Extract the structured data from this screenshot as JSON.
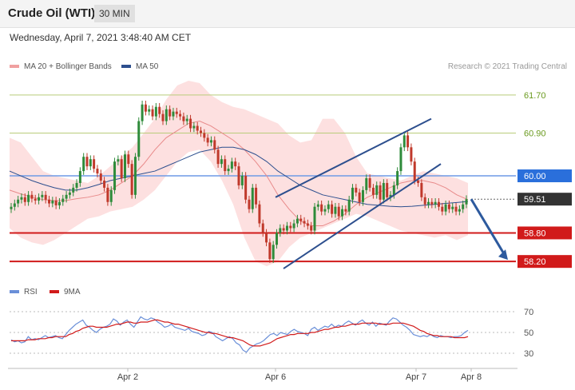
{
  "header": {
    "title": "Crude Oil (WTI)",
    "timeframe": "30 MIN"
  },
  "timestamp": "Wednesday, April 7, 2021 3:48:40 AM CET",
  "legend": {
    "ma20": "MA 20 + Bollinger Bands",
    "ma50": "MA 50",
    "copyright": "Research © 2021 Trading Central"
  },
  "rsi_legend": {
    "rsi": "RSI",
    "ma": "9MA"
  },
  "colors": {
    "ma20": "#e88a8a",
    "ma50": "#2d4f8e",
    "band": "#fcd6d6",
    "support": "#d11a1a",
    "resistance_green": "#b9cc7a",
    "pivot": "#2a6fdb",
    "up_candle": "#2e8b3a",
    "down_candle": "#c0392b",
    "arrow": "#2d5a9e",
    "rsi": "#6a8fd8",
    "rsi_ma": "#d11a1a"
  },
  "icons": {
    "forecast": "arrow-down-right-icon"
  },
  "chart_data": [
    {
      "type": "candlestick",
      "title": "Crude Oil (WTI)",
      "ylim": [
        57.85,
        62.05
      ],
      "x_ticks": [
        "Apr 2",
        "Apr 6",
        "Apr 7",
        "Apr 8"
      ],
      "levels": [
        {
          "value": 61.7,
          "label": "61.70",
          "kind": "resistance-green"
        },
        {
          "value": 60.9,
          "label": "60.90",
          "kind": "resistance-green"
        },
        {
          "value": 60.0,
          "label": "60.00",
          "kind": "pivot"
        },
        {
          "value": 59.51,
          "label": "59.51",
          "kind": "last-price"
        },
        {
          "value": 58.8,
          "label": "58.80",
          "kind": "support"
        },
        {
          "value": 58.2,
          "label": "58.20",
          "kind": "support"
        }
      ],
      "close": [
        59.35,
        59.42,
        59.5,
        59.55,
        59.45,
        59.6,
        59.52,
        59.48,
        59.55,
        59.6,
        59.5,
        59.42,
        59.48,
        59.38,
        59.45,
        59.52,
        59.6,
        59.65,
        59.75,
        59.85,
        60.1,
        60.4,
        60.2,
        60.35,
        60.15,
        60.05,
        59.9,
        59.75,
        59.45,
        59.7,
        60.3,
        60.35,
        59.95,
        60.45,
        60.25,
        59.6,
        60.4,
        61.15,
        61.5,
        61.35,
        61.4,
        61.25,
        61.45,
        61.3,
        61.15,
        61.4,
        61.25,
        61.35,
        61.3,
        61.25,
        61.15,
        61.2,
        61.0,
        61.05,
        60.95,
        60.9,
        60.8,
        60.7,
        60.75,
        60.55,
        60.25,
        60.35,
        60.1,
        60.15,
        60.3,
        60.2,
        59.8,
        60.0,
        59.5,
        59.3,
        59.75,
        59.4,
        59.0,
        58.8,
        58.6,
        58.25,
        58.55,
        58.8,
        58.9,
        58.85,
        58.95,
        58.9,
        59.0,
        59.1,
        59.05,
        59.0,
        58.95,
        58.85,
        59.35,
        59.4,
        59.25,
        59.3,
        59.4,
        59.2,
        59.35,
        59.15,
        59.3,
        59.25,
        59.5,
        59.75,
        59.65,
        59.45,
        59.7,
        59.95,
        59.75,
        59.6,
        59.8,
        59.5,
        59.85,
        59.55,
        59.6,
        59.8,
        60.1,
        60.6,
        60.85,
        60.6,
        60.3,
        59.9,
        59.85,
        59.55,
        59.4,
        59.45,
        59.4,
        59.45,
        59.35,
        59.25,
        59.4,
        59.3,
        59.35,
        59.25,
        59.3,
        59.4,
        59.51
      ],
      "bands_upper": [
        60.8,
        60.7,
        60.4,
        60.1,
        60.0,
        59.95,
        59.9,
        59.85,
        60.0,
        60.2,
        60.4,
        60.6,
        60.9,
        61.2,
        61.6,
        61.9,
        62.0,
        61.95,
        61.7,
        61.55,
        61.45,
        61.4,
        61.3,
        61.2,
        61.1,
        60.85,
        60.7,
        60.75,
        61.2,
        61.2,
        60.9,
        60.4,
        60.05,
        60.0,
        59.95,
        59.9,
        60.0,
        60.1,
        60.05,
        60.0,
        59.95,
        59.85
      ],
      "bands_lower": [
        58.9,
        58.7,
        58.6,
        58.55,
        58.65,
        58.8,
        58.95,
        59.1,
        59.15,
        59.25,
        59.3,
        59.35,
        59.5,
        59.7,
        60.0,
        60.3,
        60.5,
        60.55,
        60.3,
        59.9,
        59.4,
        58.7,
        58.2,
        58.1,
        58.2,
        58.5,
        58.7,
        58.8,
        58.9,
        59.0,
        59.1,
        59.2,
        59.15,
        59.05,
        58.95,
        58.85,
        58.8,
        58.75,
        58.7,
        58.75,
        58.65,
        58.75
      ],
      "ma20": [
        59.7,
        59.62,
        59.55,
        59.5,
        59.48,
        59.48,
        59.52,
        59.55,
        59.6,
        59.7,
        59.85,
        60.0,
        60.25,
        60.55,
        60.8,
        60.95,
        61.1,
        61.15,
        61.05,
        60.9,
        60.75,
        60.55,
        60.3,
        60.0,
        59.6,
        59.3,
        59.05,
        58.95,
        58.95,
        59.05,
        59.2,
        59.4,
        59.55,
        59.65,
        59.75,
        59.85,
        59.9,
        59.9,
        59.85,
        59.75,
        59.6,
        59.5
      ],
      "ma50": [
        60.1,
        60.0,
        59.9,
        59.82,
        59.75,
        59.7,
        59.7,
        59.75,
        59.82,
        59.9,
        59.95,
        60.0,
        60.05,
        60.1,
        60.2,
        60.3,
        60.4,
        60.5,
        60.55,
        60.6,
        60.6,
        60.55,
        60.45,
        60.3,
        60.1,
        59.95,
        59.8,
        59.7,
        59.6,
        59.55,
        59.5,
        59.45,
        59.4,
        59.38,
        59.36,
        59.35,
        59.36,
        59.38,
        59.4,
        59.42,
        59.44,
        59.46
      ],
      "channel": [
        {
          "from": 58.05,
          "to": 60.25
        },
        {
          "from": 59.55,
          "to": 61.2
        }
      ],
      "forecast_to": 58.2
    },
    {
      "type": "line",
      "title": "RSI",
      "ylim": [
        20,
        80
      ],
      "y_ticks": [
        70,
        50,
        30
      ],
      "series": [
        {
          "name": "RSI",
          "values": [
            43,
            41,
            42,
            40,
            41,
            46,
            43,
            44,
            43,
            45,
            47,
            45,
            46,
            47,
            45,
            44,
            48,
            52,
            55,
            58,
            60,
            62,
            57,
            55,
            52,
            50,
            53,
            55,
            56,
            58,
            63,
            61,
            57,
            60,
            62,
            58,
            55,
            60,
            65,
            63,
            62,
            64,
            63,
            60,
            58,
            55,
            56,
            58,
            55,
            54,
            53,
            52,
            54,
            51,
            50,
            49,
            47,
            48,
            51,
            50,
            46,
            44,
            42,
            44,
            46,
            44,
            40,
            38,
            33,
            31,
            35,
            37,
            39,
            40,
            42,
            45,
            48,
            49,
            47,
            50,
            49,
            48,
            51,
            53,
            51,
            50,
            49,
            47,
            53,
            55,
            52,
            54,
            56,
            55,
            58,
            55,
            57,
            56,
            59,
            61,
            59,
            57,
            60,
            62,
            59,
            57,
            60,
            56,
            59,
            58,
            57,
            61,
            64,
            63,
            60,
            57,
            55,
            52,
            48,
            47,
            46,
            47,
            46,
            48,
            46,
            45,
            47,
            46,
            46,
            45,
            46,
            46,
            47,
            50,
            52
          ]
        },
        {
          "name": "9MA",
          "values": [
            42,
            42,
            42,
            42,
            42,
            43,
            43,
            43,
            44,
            44,
            44,
            45,
            45,
            46,
            46,
            46,
            46,
            48,
            49,
            51,
            52,
            54,
            55,
            56,
            56,
            55,
            55,
            55,
            55,
            56,
            57,
            58,
            58,
            59,
            60,
            60,
            59,
            59,
            60,
            60,
            60,
            61,
            62,
            62,
            61,
            60,
            60,
            59,
            58,
            58,
            57,
            56,
            55,
            54,
            53,
            52,
            51,
            50,
            50,
            49,
            49,
            48,
            47,
            46,
            45,
            45,
            44,
            43,
            42,
            40,
            38,
            37,
            37,
            37,
            38,
            39,
            40,
            42,
            44,
            45,
            46,
            47,
            48,
            48,
            49,
            49,
            49,
            49,
            50,
            50,
            51,
            52,
            53,
            53,
            54,
            55,
            55,
            56,
            56,
            57,
            58,
            58,
            58,
            59,
            59,
            59,
            59,
            59,
            58,
            58,
            58,
            58,
            59,
            59,
            59,
            59,
            58,
            57,
            56,
            54,
            52,
            51,
            49,
            48,
            47,
            47,
            46,
            46,
            46,
            46,
            45,
            45,
            45,
            45,
            46
          ]
        }
      ]
    }
  ]
}
